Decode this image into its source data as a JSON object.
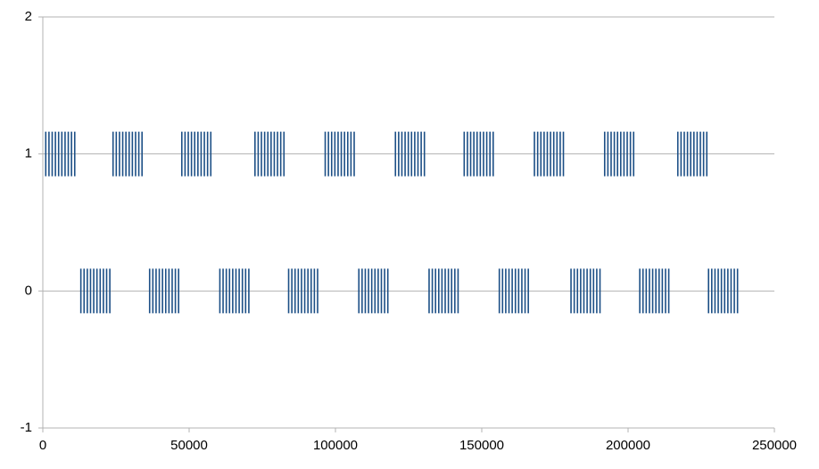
{
  "chart_data": {
    "type": "scatter",
    "xlim": [
      0,
      250000
    ],
    "xticks": [
      0,
      50000,
      100000,
      150000,
      200000,
      250000
    ],
    "ylim": [
      -1,
      2
    ],
    "yticks": [
      -1,
      0,
      1,
      2
    ],
    "grid": true,
    "marker": "vline",
    "series": [
      {
        "color": "#1c4f86",
        "x": [
          1000,
          2100,
          3200,
          4300,
          5400,
          6500,
          7600,
          8700,
          9800,
          10900,
          24000,
          25100,
          26200,
          27300,
          28400,
          29500,
          30600,
          31700,
          32800,
          33900,
          47500,
          48600,
          49700,
          50800,
          51900,
          53000,
          54100,
          55200,
          56300,
          57400,
          72500,
          73600,
          74700,
          75800,
          76900,
          78000,
          79100,
          80200,
          81300,
          82400,
          96500,
          97600,
          98700,
          99800,
          100900,
          102000,
          103100,
          104200,
          105300,
          106400,
          120500,
          121600,
          122700,
          123800,
          124900,
          126000,
          127100,
          128200,
          129300,
          130400,
          144000,
          145100,
          146200,
          147300,
          148400,
          149500,
          150600,
          151700,
          152800,
          153900,
          168000,
          169100,
          170200,
          171300,
          172400,
          173500,
          174600,
          175700,
          176800,
          177900,
          192000,
          193100,
          194200,
          195300,
          196400,
          197500,
          198600,
          199700,
          200800,
          201900,
          217000,
          218100,
          219200,
          220300,
          221400,
          222500,
          223600,
          224700,
          225800,
          226900
        ],
        "values": [
          1,
          1,
          1,
          1,
          1,
          1,
          1,
          1,
          1,
          1,
          1,
          1,
          1,
          1,
          1,
          1,
          1,
          1,
          1,
          1,
          1,
          1,
          1,
          1,
          1,
          1,
          1,
          1,
          1,
          1,
          1,
          1,
          1,
          1,
          1,
          1,
          1,
          1,
          1,
          1,
          1,
          1,
          1,
          1,
          1,
          1,
          1,
          1,
          1,
          1,
          1,
          1,
          1,
          1,
          1,
          1,
          1,
          1,
          1,
          1,
          1,
          1,
          1,
          1,
          1,
          1,
          1,
          1,
          1,
          1,
          1,
          1,
          1,
          1,
          1,
          1,
          1,
          1,
          1,
          1,
          1,
          1,
          1,
          1,
          1,
          1,
          1,
          1,
          1,
          1,
          1,
          1,
          1,
          1,
          1,
          1,
          1,
          1,
          1,
          1
        ]
      },
      {
        "color": "#1c4f86",
        "x": [
          13000,
          14100,
          15200,
          16300,
          17400,
          18500,
          19600,
          20700,
          21800,
          22900,
          36500,
          37600,
          38700,
          39800,
          40900,
          42000,
          43100,
          44200,
          45300,
          46400,
          60500,
          61600,
          62700,
          63800,
          64900,
          66000,
          67100,
          68200,
          69300,
          70400,
          84000,
          85100,
          86200,
          87300,
          88400,
          89500,
          90600,
          91700,
          92800,
          93900,
          108000,
          109100,
          110200,
          111300,
          112400,
          113500,
          114600,
          115700,
          116800,
          117900,
          132000,
          133100,
          134200,
          135300,
          136400,
          137500,
          138600,
          139700,
          140800,
          141900,
          156000,
          157100,
          158200,
          159300,
          160400,
          161500,
          162600,
          163700,
          164800,
          165900,
          180500,
          181600,
          182700,
          183800,
          184900,
          186000,
          187100,
          188200,
          189300,
          190400,
          204000,
          205100,
          206200,
          207300,
          208400,
          209500,
          210600,
          211700,
          212800,
          213900,
          227500,
          228600,
          229700,
          230800,
          231900,
          233000,
          234100,
          235200,
          236300,
          237400
        ],
        "values": [
          0,
          0,
          0,
          0,
          0,
          0,
          0,
          0,
          0,
          0,
          0,
          0,
          0,
          0,
          0,
          0,
          0,
          0,
          0,
          0,
          0,
          0,
          0,
          0,
          0,
          0,
          0,
          0,
          0,
          0,
          0,
          0,
          0,
          0,
          0,
          0,
          0,
          0,
          0,
          0,
          0,
          0,
          0,
          0,
          0,
          0,
          0,
          0,
          0,
          0,
          0,
          0,
          0,
          0,
          0,
          0,
          0,
          0,
          0,
          0,
          0,
          0,
          0,
          0,
          0,
          0,
          0,
          0,
          0,
          0,
          0,
          0,
          0,
          0,
          0,
          0,
          0,
          0,
          0,
          0,
          0,
          0,
          0,
          0,
          0,
          0,
          0,
          0,
          0,
          0,
          0,
          0,
          0,
          0,
          0,
          0,
          0,
          0,
          0,
          0
        ]
      }
    ]
  }
}
